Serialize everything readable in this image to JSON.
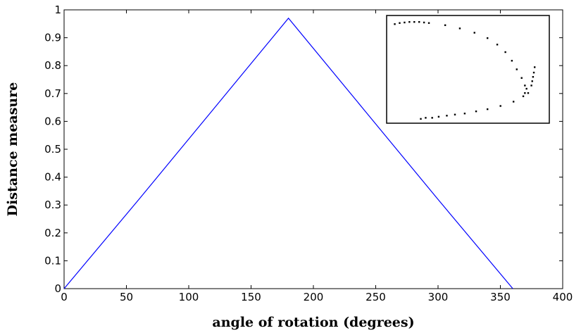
{
  "chart_data": {
    "type": "line",
    "xlabel": "angle of rotation (degrees)",
    "ylabel": "Distance measure",
    "xlim": [
      0,
      400
    ],
    "ylim": [
      0,
      1
    ],
    "xticks": [
      0,
      50,
      100,
      150,
      200,
      250,
      300,
      350,
      400
    ],
    "yticks": [
      0,
      0.1,
      0.2,
      0.3,
      0.4,
      0.5,
      0.6,
      0.7,
      0.8,
      0.9,
      1
    ],
    "xtick_labels": [
      "0",
      "50",
      "100",
      "150",
      "200",
      "250",
      "300",
      "350",
      "400"
    ],
    "ytick_labels": [
      "0",
      "0.1",
      "0.2",
      "0.3",
      "0.4",
      "0.5",
      "0.6",
      "0.7",
      "0.8",
      "0.9",
      "1"
    ],
    "grid": false,
    "series": [
      {
        "color": "#0000ff",
        "x": [
          0,
          60,
          120,
          180,
          240,
          300,
          360
        ],
        "y": [
          0,
          0.32,
          0.645,
          0.97,
          0.645,
          0.32,
          0
        ]
      }
    ],
    "inset": {
      "type": "scatter",
      "color": "#000000",
      "points": [
        [
          0.05,
          0.92
        ],
        [
          0.08,
          0.93
        ],
        [
          0.11,
          0.935
        ],
        [
          0.14,
          0.94
        ],
        [
          0.17,
          0.94
        ],
        [
          0.2,
          0.94
        ],
        [
          0.23,
          0.935
        ],
        [
          0.26,
          0.93
        ],
        [
          0.36,
          0.91
        ],
        [
          0.45,
          0.88
        ],
        [
          0.54,
          0.84
        ],
        [
          0.62,
          0.79
        ],
        [
          0.68,
          0.73
        ],
        [
          0.73,
          0.66
        ],
        [
          0.77,
          0.58
        ],
        [
          0.8,
          0.5
        ],
        [
          0.83,
          0.42
        ],
        [
          0.85,
          0.35
        ],
        [
          0.87,
          0.28
        ],
        [
          0.91,
          0.52
        ],
        [
          0.905,
          0.47
        ],
        [
          0.9,
          0.43
        ],
        [
          0.895,
          0.39
        ],
        [
          0.89,
          0.35
        ],
        [
          0.86,
          0.32
        ],
        [
          0.85,
          0.28
        ],
        [
          0.84,
          0.25
        ],
        [
          0.78,
          0.2
        ],
        [
          0.7,
          0.16
        ],
        [
          0.62,
          0.13
        ],
        [
          0.55,
          0.11
        ],
        [
          0.48,
          0.09
        ],
        [
          0.42,
          0.08
        ],
        [
          0.37,
          0.07
        ],
        [
          0.32,
          0.06
        ],
        [
          0.28,
          0.05
        ],
        [
          0.24,
          0.05
        ],
        [
          0.21,
          0.04
        ]
      ]
    }
  }
}
